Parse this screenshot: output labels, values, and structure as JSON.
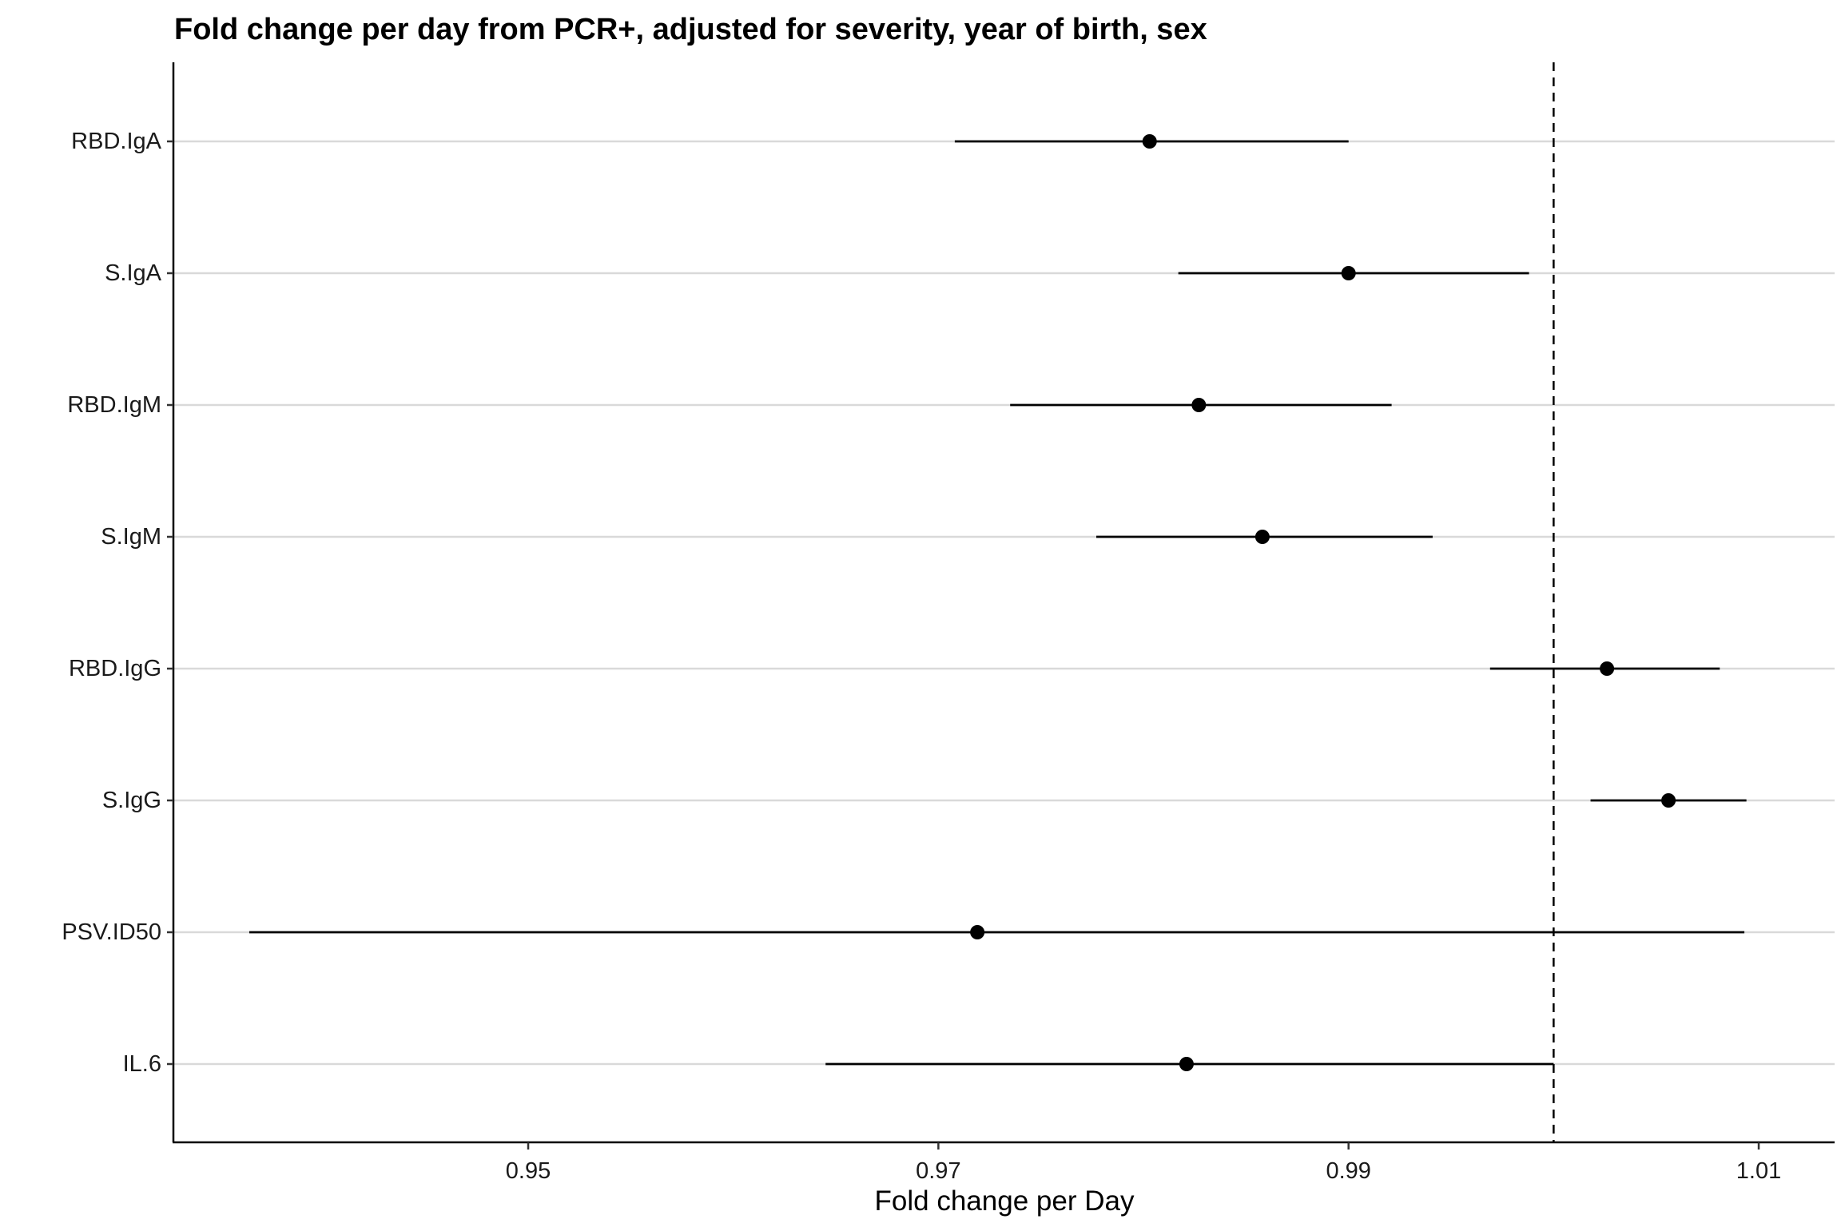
{
  "chart_data": {
    "type": "forest",
    "title": "Fold change per day from PCR+, adjusted for severity, year of birth, sex",
    "xlabel": "Fold change per Day",
    "ylabel": "",
    "xlim": [
      0.9327,
      1.0137
    ],
    "x_ticks": [
      0.95,
      0.97,
      0.99,
      1.01
    ],
    "x_tick_labels": [
      "0.95",
      "0.97",
      "0.99",
      "1.01"
    ],
    "reference_line": 1.0,
    "grid": "horizontal-major",
    "legend": "none",
    "colors": {
      "point": "#000000",
      "gridline": "#d9d9d9",
      "axis": "#000000"
    },
    "categories": [
      "RBD.IgA",
      "S.IgA",
      "RBD.IgM",
      "S.IgM",
      "RBD.IgG",
      "S.IgG",
      "PSV.ID50",
      "IL.6"
    ],
    "estimates": [
      0.9803,
      0.99,
      0.9827,
      0.9858,
      1.0026,
      1.0056,
      0.9719,
      0.9821
    ],
    "lower": [
      0.9708,
      0.9817,
      0.9735,
      0.9777,
      0.9969,
      1.0018,
      0.9364,
      0.9645
    ],
    "upper": [
      0.99,
      0.9988,
      0.9921,
      0.9941,
      1.0081,
      1.0094,
      1.0093,
      1.0
    ]
  }
}
